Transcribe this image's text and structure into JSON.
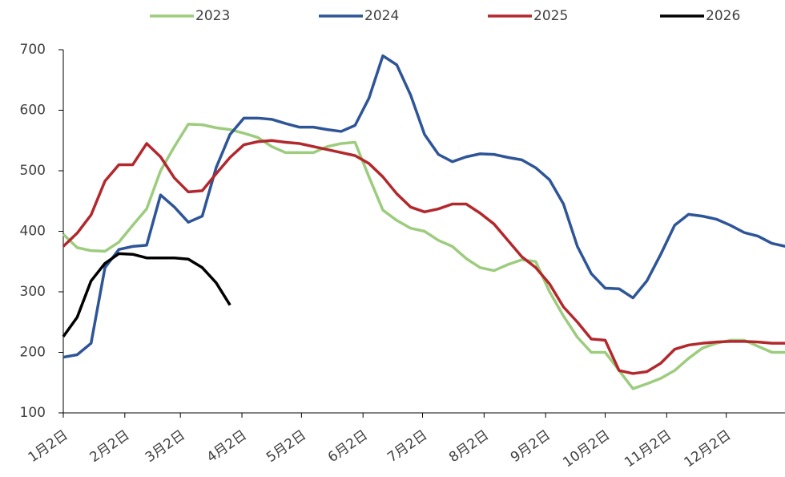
{
  "chart_data": {
    "type": "line",
    "x": [
      0,
      7,
      14,
      21,
      28,
      35,
      42,
      49,
      56,
      63,
      70,
      77,
      84,
      91,
      98,
      105,
      112,
      119,
      126,
      133,
      140,
      147,
      154,
      161,
      168,
      175,
      182,
      189,
      196,
      203,
      210,
      217,
      224,
      231,
      238,
      245,
      252,
      259,
      266,
      273,
      280,
      287,
      294,
      301,
      308,
      315,
      322,
      329,
      336,
      343,
      350,
      357,
      364
    ],
    "xlim": [
      0,
      364
    ],
    "xticks": [
      {
        "value": 0,
        "label": "1月2日"
      },
      {
        "value": 31,
        "label": "2月2日"
      },
      {
        "value": 59,
        "label": "3月2日"
      },
      {
        "value": 90,
        "label": "4月2日"
      },
      {
        "value": 120,
        "label": "5月2日"
      },
      {
        "value": 151,
        "label": "6月2日"
      },
      {
        "value": 181,
        "label": "7月2日"
      },
      {
        "value": 212,
        "label": "8月2日"
      },
      {
        "value": 243,
        "label": "9月2日"
      },
      {
        "value": 273,
        "label": "10月2日"
      },
      {
        "value": 304,
        "label": "11月2日"
      },
      {
        "value": 334,
        "label": "12月2日"
      }
    ],
    "ylim": [
      100,
      700
    ],
    "yticks": [
      100,
      200,
      300,
      400,
      500,
      600,
      700
    ],
    "series": [
      {
        "name": "2023",
        "color": "#9dcc7e",
        "values": [
          395,
          373,
          368,
          367,
          382,
          410,
          437,
          500,
          540,
          577,
          576,
          571,
          568,
          562,
          555,
          540,
          530,
          530,
          530,
          540,
          545,
          547,
          490,
          435,
          418,
          405,
          400,
          385,
          375,
          355,
          340,
          335,
          345,
          353,
          350,
          300,
          260,
          225,
          200,
          200,
          170,
          140,
          148,
          157,
          170,
          190,
          207,
          215,
          220,
          220,
          210,
          200,
          200
        ]
      },
      {
        "name": "2024",
        "color": "#2e5597",
        "values": [
          192,
          196,
          215,
          340,
          370,
          375,
          377,
          460,
          440,
          415,
          425,
          505,
          560,
          587,
          587,
          585,
          578,
          572,
          572,
          568,
          565,
          575,
          620,
          690,
          675,
          625,
          560,
          527,
          515,
          523,
          528,
          527,
          522,
          518,
          505,
          485,
          445,
          375,
          330,
          306,
          305,
          290,
          318,
          362,
          410,
          428,
          425,
          420,
          410,
          398,
          392,
          380,
          375
        ]
      },
      {
        "name": "2025",
        "color": "#b2282d",
        "values": [
          375,
          397,
          427,
          483,
          510,
          510,
          545,
          523,
          488,
          465,
          467,
          495,
          522,
          543,
          548,
          550,
          547,
          545,
          540,
          535,
          530,
          525,
          512,
          490,
          462,
          440,
          432,
          437,
          445,
          445,
          430,
          412,
          385,
          358,
          340,
          313,
          275,
          250,
          222,
          220,
          170,
          165,
          168,
          182,
          205,
          212,
          215,
          217,
          218,
          218,
          217,
          215,
          215
        ]
      },
      {
        "name": "2026",
        "color": "#000000",
        "values": [
          226,
          258,
          318,
          347,
          363,
          362,
          356,
          356,
          356,
          354,
          340,
          315,
          278,
          null,
          null,
          null,
          null,
          null,
          null,
          null,
          null,
          null,
          null,
          null,
          null,
          null,
          null,
          null,
          null,
          null,
          null,
          null,
          null,
          null,
          null,
          null,
          null,
          null,
          null,
          null,
          null,
          null,
          null,
          null,
          null,
          null,
          null,
          null,
          null,
          null,
          null,
          null,
          null
        ]
      }
    ]
  }
}
